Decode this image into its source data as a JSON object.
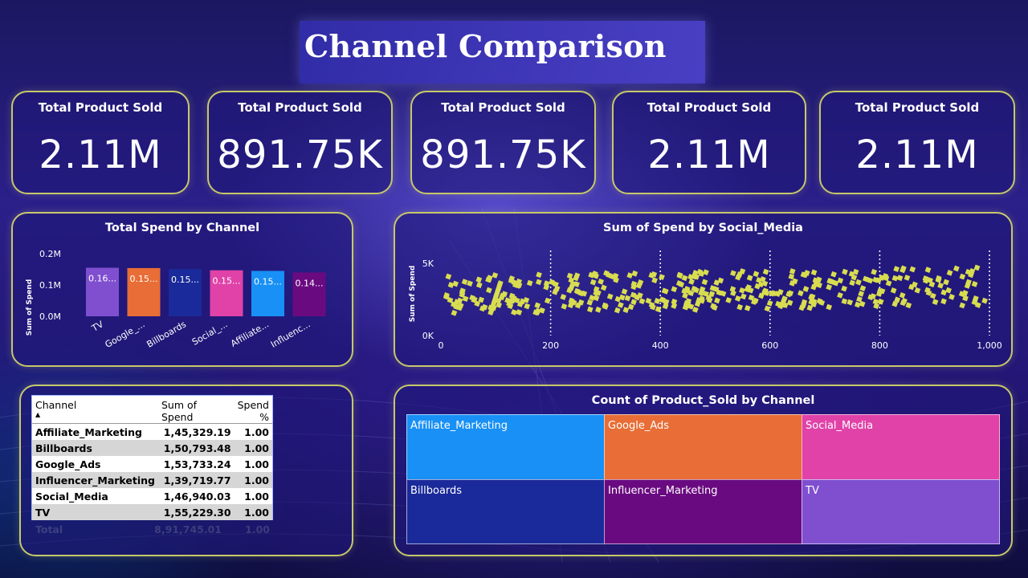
{
  "page_title": "Channel Comparison",
  "kpis": [
    {
      "label": "Total Product Sold",
      "value": "2.11M"
    },
    {
      "label": "Total Product Sold",
      "value": "891.75K"
    },
    {
      "label": "Total Product Sold",
      "value": "891.75K"
    },
    {
      "label": "Total Product Sold",
      "value": "2.11M"
    },
    {
      "label": "Total Product Sold",
      "value": "2.11M"
    }
  ],
  "bar_chart": {
    "title": "Total Spend by Channel",
    "ylabel": "Sum of Spend",
    "y_ticks": [
      "0.2M",
      "0.1M",
      "0.0M"
    ],
    "category_labels": [
      "TV",
      "Google_...",
      "Billboards",
      "Social_...",
      "Affiliate...",
      "Influenc..."
    ],
    "data_labels": [
      "0.16...",
      "0.15...",
      "0.15...",
      "0.15...",
      "0.15...",
      "0.14..."
    ]
  },
  "scatter_chart": {
    "title": "Sum of Spend by Social_Media",
    "ylabel": "Sum of Spend",
    "y_ticks": [
      "5K",
      "0K"
    ],
    "x_ticks": [
      "0",
      "200",
      "400",
      "600",
      "800",
      "1,000"
    ]
  },
  "table": {
    "headers": {
      "channel": "Channel",
      "spend": "Sum of Spend",
      "pct": "Spend %"
    },
    "rows": [
      {
        "channel": "Affiliate_Marketing",
        "spend": "1,45,329.19",
        "pct": "1.00"
      },
      {
        "channel": "Billboards",
        "spend": "1,50,793.48",
        "pct": "1.00"
      },
      {
        "channel": "Google_Ads",
        "spend": "1,53,733.24",
        "pct": "1.00"
      },
      {
        "channel": "Influencer_Marketing",
        "spend": "1,39,719.77",
        "pct": "1.00"
      },
      {
        "channel": "Social_Media",
        "spend": "1,46,940.03",
        "pct": "1.00"
      },
      {
        "channel": "TV",
        "spend": "1,55,229.30",
        "pct": "1.00"
      }
    ],
    "total": {
      "label": "Total",
      "spend": "8,91,745.01",
      "pct": "1.00"
    }
  },
  "treemap": {
    "title": "Count of Product_Sold by Channel",
    "cells": [
      {
        "label": "Affiliate_Marketing"
      },
      {
        "label": "Google_Ads"
      },
      {
        "label": "Social_Media"
      },
      {
        "label": "Billboards"
      },
      {
        "label": "Influencer_Marketing"
      },
      {
        "label": "TV"
      }
    ]
  },
  "colors": {
    "card_border": "#c7c86a",
    "tv": "#7f4fd0",
    "google_ads": "#e86d36",
    "billboards": "#1a2a9a",
    "social_media": "#e042a8",
    "affiliate": "#1890f5",
    "influencer": "#6a0a80",
    "scatter_point": "#d8dc50"
  },
  "chart_data": [
    {
      "type": "bar",
      "title": "Total Spend by Channel",
      "categories": [
        "TV",
        "Google_Ads",
        "Billboards",
        "Social_Media",
        "Affiliate_Marketing",
        "Influencer_Marketing"
      ],
      "values": [
        0.155,
        0.154,
        0.151,
        0.147,
        0.145,
        0.14
      ],
      "ylabel": "Sum of Spend",
      "ylim": [
        0,
        0.2
      ],
      "unit": "M"
    },
    {
      "type": "scatter",
      "title": "Sum of Spend by Social_Media",
      "ylabel": "Sum of Spend",
      "xlim": [
        0,
        1000
      ],
      "ylim": [
        0,
        6000
      ],
      "x_range_of_points": [
        10,
        1000
      ],
      "y_range_of_points": [
        500,
        3000
      ],
      "y_trend": "roughly flat around 1500-2500 with slight rise toward x=1000"
    }
  ]
}
